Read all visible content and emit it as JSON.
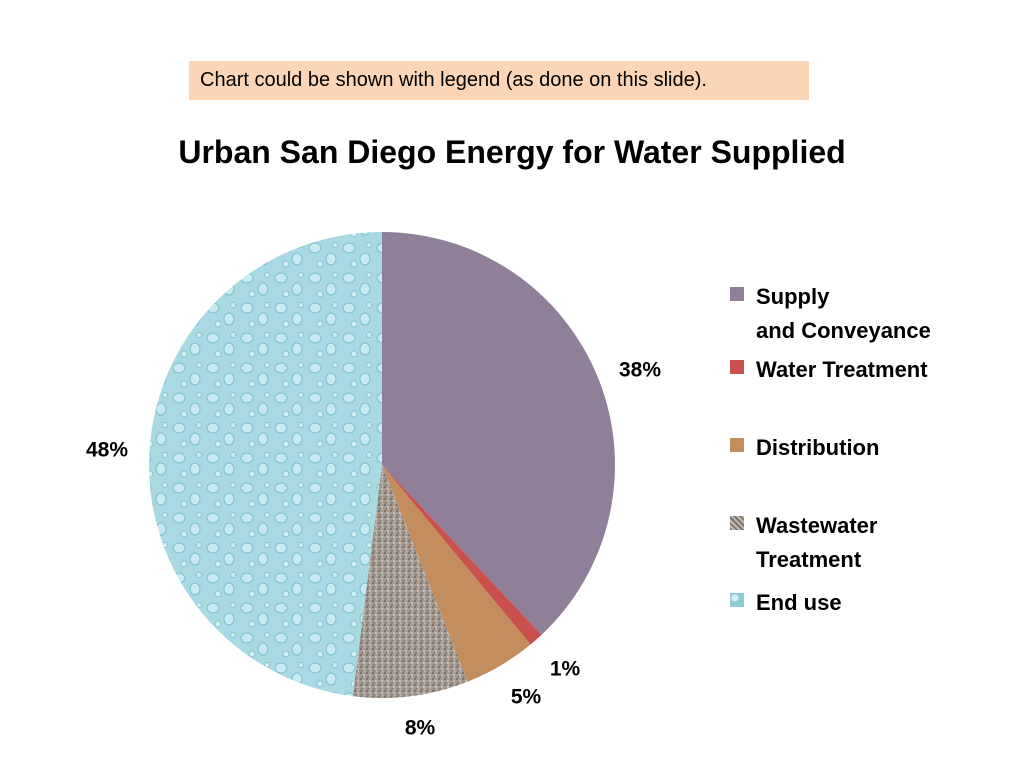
{
  "note": "Chart could be shown with legend (as done on this slide).",
  "chart_data": {
    "type": "pie",
    "title": "Urban San Diego Energy for Water Supplied",
    "categories": [
      "Supply\nand Conveyance",
      "Water Treatment",
      "Distribution",
      "Wastewater\nTreatment",
      "End use"
    ],
    "values": [
      38,
      1,
      5,
      8,
      48
    ],
    "labels": [
      "38%",
      "1%",
      "5%",
      "8%",
      "48%"
    ],
    "colors": [
      "#8f7f99",
      "#c9504c",
      "#c48d5e",
      "#9d958c",
      "#a6d8e0"
    ],
    "legend_position": "right"
  }
}
